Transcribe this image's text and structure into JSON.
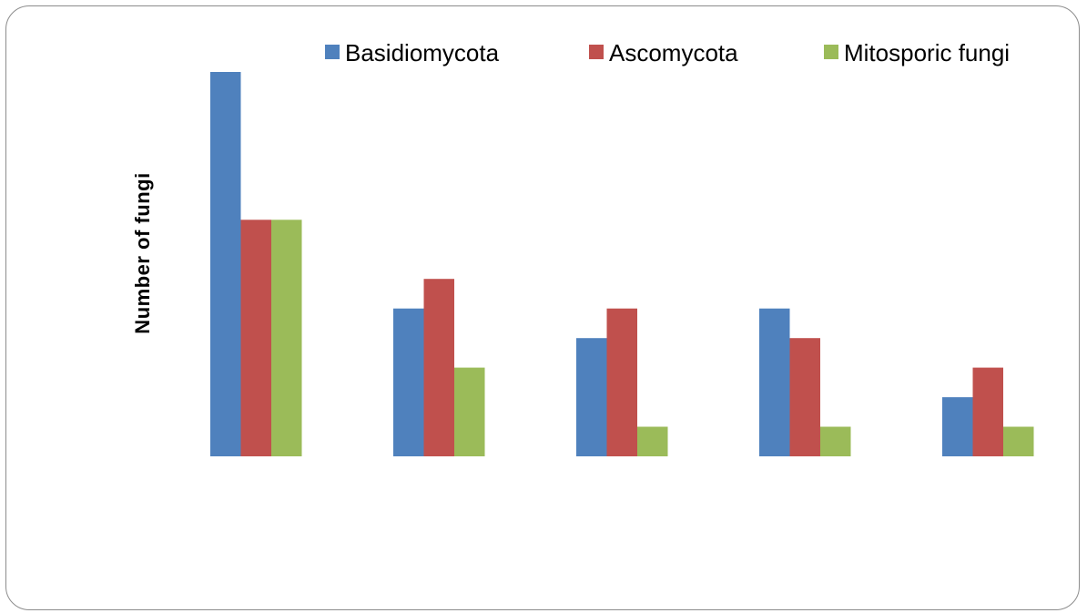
{
  "chart_data": {
    "type": "bar",
    "title": "",
    "xlabel": "",
    "ylabel": "Number  of  fungi",
    "categories": [
      "",
      "",
      "",
      "",
      ""
    ],
    "series": [
      {
        "name": "Basidiomycota",
        "color": "#4f81bd",
        "values": [
          13,
          5,
          4,
          5,
          2
        ]
      },
      {
        "name": "Ascomycota",
        "color": "#c0504d",
        "values": [
          8,
          6,
          5,
          4,
          3
        ]
      },
      {
        "name": "Mitosporic fungi",
        "color": "#9bbb59",
        "values": [
          8,
          3,
          1,
          1,
          1
        ]
      }
    ],
    "ylim": [
      0,
      13
    ],
    "grid": false,
    "legend_position": "top"
  }
}
